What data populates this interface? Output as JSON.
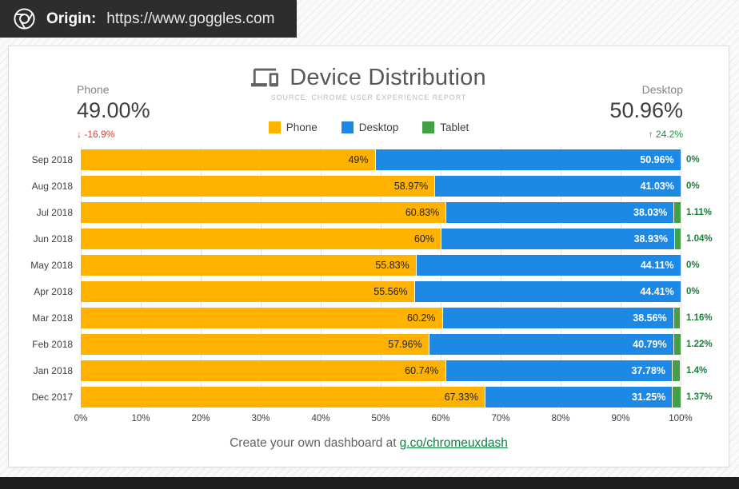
{
  "origin_bar": {
    "label": "Origin:",
    "url": "https://www.goggles.com"
  },
  "header": {
    "title": "Device Distribution",
    "source": "SOURCE: CHROME USER EXPERIENCE REPORT"
  },
  "stats": {
    "phone": {
      "label": "Phone",
      "value": "49.00%",
      "delta": "-16.9%",
      "direction": "down",
      "delta_color": "#e53935"
    },
    "desktop": {
      "label": "Desktop",
      "value": "50.96%",
      "delta": "24.2%",
      "direction": "up",
      "delta_color": "#1e8e3e"
    }
  },
  "icons": {
    "down_arrow": "↓",
    "up_arrow": "↑"
  },
  "legend": [
    {
      "label": "Phone",
      "color": "#FFB300"
    },
    {
      "label": "Desktop",
      "color": "#1E88E5"
    },
    {
      "label": "Tablet",
      "color": "#43A047"
    }
  ],
  "chart_data": {
    "type": "bar",
    "stacked": true,
    "orientation": "horizontal",
    "xlim": [
      0,
      100
    ],
    "grid": true,
    "legend_position": "top-center",
    "x_ticks": [
      "0%",
      "10%",
      "20%",
      "30%",
      "40%",
      "50%",
      "60%",
      "70%",
      "80%",
      "90%",
      "100%"
    ],
    "categories": [
      "Sep 2018",
      "Aug 2018",
      "Jul 2018",
      "Jun 2018",
      "May 2018",
      "Apr 2018",
      "Mar 2018",
      "Feb 2018",
      "Jan 2018",
      "Dec 2017"
    ],
    "series": [
      {
        "name": "Phone",
        "color": "#FFB300",
        "values": [
          49,
          58.97,
          60.83,
          60,
          55.83,
          55.56,
          60.2,
          57.96,
          60.74,
          67.33
        ],
        "labels": [
          "49%",
          "58.97%",
          "60.83%",
          "60%",
          "55.83%",
          "55.56%",
          "60.2%",
          "57.96%",
          "60.74%",
          "67.33%"
        ]
      },
      {
        "name": "Desktop",
        "color": "#1E88E5",
        "values": [
          50.96,
          41.03,
          38.03,
          38.93,
          44.11,
          44.41,
          38.56,
          40.79,
          37.78,
          31.25
        ],
        "labels": [
          "50.96%",
          "41.03%",
          "38.03%",
          "38.93%",
          "44.11%",
          "44.41%",
          "38.56%",
          "40.79%",
          "37.78%",
          "31.25%"
        ]
      },
      {
        "name": "Tablet",
        "color": "#43A047",
        "values": [
          0,
          0,
          1.11,
          1.04,
          0,
          0,
          1.16,
          1.22,
          1.4,
          1.37
        ],
        "labels": [
          "0%",
          "0%",
          "1.11%",
          "1.04%",
          "0%",
          "0%",
          "1.16%",
          "1.22%",
          "1.4%",
          "1.37%"
        ]
      }
    ]
  },
  "footer": {
    "text": "Create your own dashboard at",
    "link_text": "g.co/chromeuxdash"
  }
}
